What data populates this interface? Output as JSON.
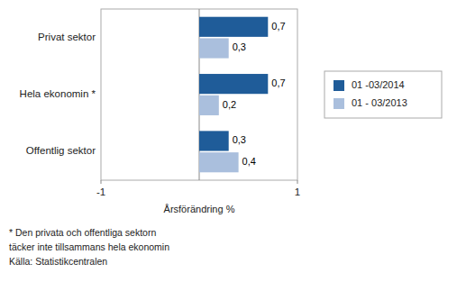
{
  "chart_data": {
    "type": "bar",
    "orientation": "horizontal",
    "categories": [
      "Offentlig sektor",
      "Hela ekonomin *",
      "Privat sektor"
    ],
    "series": [
      {
        "name": "01 -03/2014",
        "color": "#1F5C99",
        "values": [
          0.3,
          0.7,
          0.7
        ],
        "value_labels": [
          "0,3",
          "0,7",
          "0,7"
        ]
      },
      {
        "name": "01 - 03/2013",
        "color": "#AABFDD",
        "values": [
          0.4,
          0.2,
          0.3
        ],
        "value_labels": [
          "0,4",
          "0,2",
          "0,3"
        ]
      }
    ],
    "xlabel": "Årsförändring %",
    "xlim": [
      -1,
      1
    ],
    "xticks": [
      -1,
      1
    ],
    "data_labels": true,
    "grid": false,
    "legend": "right",
    "annotations": [
      "* Den privata och offentliga sektorn",
      "täcker inte tillsammans hela ekonomin",
      "Källa: Statistikcentralen"
    ]
  }
}
